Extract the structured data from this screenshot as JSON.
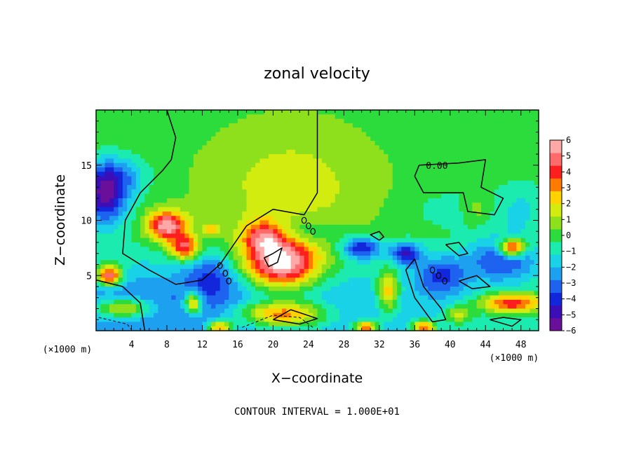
{
  "chart_data": {
    "type": "heatmap",
    "title": "zonal velocity",
    "xlabel": "X−coordinate",
    "ylabel": "Z−coordinate",
    "x_unit_left": "(×1000 m)",
    "x_unit_right": "(×1000 m)",
    "xlim": [
      0,
      50
    ],
    "ylim": [
      0,
      20
    ],
    "x_ticks": [
      4,
      8,
      12,
      16,
      20,
      24,
      28,
      32,
      36,
      40,
      44,
      48
    ],
    "y_ticks": [
      5,
      10,
      15
    ],
    "colorbar": {
      "min": -6,
      "max": 6,
      "tick_values": [
        6,
        5,
        4,
        3,
        2,
        1,
        0,
        -1,
        -2,
        -3,
        -4,
        -5,
        -6
      ],
      "tick_labels": [
        "6",
        "5",
        "4",
        "3",
        "2",
        "1",
        "0",
        "−1",
        "−2",
        "−3",
        "−4",
        "−5",
        "−6"
      ],
      "colors": [
        "#6a0f9a",
        "#3a0fb8",
        "#1226dc",
        "#1e63f0",
        "#1ea0f0",
        "#19d2e8",
        "#1cebb0",
        "#2bdc3c",
        "#8fe01c",
        "#d2ec10",
        "#ffd200",
        "#ff7a00",
        "#ff1e1e",
        "#ff6a6a",
        "#ffa8a8"
      ]
    },
    "contour_label": "0.00",
    "contour_interval_text": "CONTOUR INTERVAL = 1.000E+01",
    "field_blobs": [
      {
        "x": 10,
        "y": 2,
        "sx": 32,
        "sy": 4.5,
        "v": -3.0
      },
      {
        "x": 39,
        "y": 5,
        "sx": 3,
        "sy": 1.8,
        "v": -3.0
      },
      {
        "x": 1,
        "y": 12,
        "sx": 2.6,
        "sy": 2.5,
        "v": -4.8
      },
      {
        "x": 2,
        "y": 14,
        "sx": 3.5,
        "sy": 1.8,
        "v": -2.5
      },
      {
        "x": 13,
        "y": 5,
        "sx": 2.8,
        "sy": 2.0,
        "v": -2.2
      },
      {
        "x": 23,
        "y": 9,
        "sx": 4,
        "sy": 1.2,
        "v": -1.5
      },
      {
        "x": 30,
        "y": 7.5,
        "sx": 2.2,
        "sy": 1.0,
        "v": -4.2
      },
      {
        "x": 35,
        "y": 7.0,
        "sx": 1.8,
        "sy": 1.0,
        "v": -4.0
      },
      {
        "x": 46,
        "y": 6.5,
        "sx": 4,
        "sy": 2.0,
        "v": -3.5
      },
      {
        "x": 48,
        "y": 11,
        "sx": 3,
        "sy": 2.5,
        "v": -1.3
      },
      {
        "x": 40,
        "y": 11,
        "sx": 5,
        "sy": 1.8,
        "v": -0.8
      },
      {
        "x": 22,
        "y": 13,
        "sx": 10,
        "sy": 6,
        "v": 1.6
      },
      {
        "x": 43,
        "y": 11,
        "sx": 1.6,
        "sy": 1.2,
        "v": 1.2
      },
      {
        "x": 8,
        "y": 9.5,
        "sx": 2.2,
        "sy": 1.3,
        "v": 6.0
      },
      {
        "x": 10,
        "y": 7.5,
        "sx": 1.6,
        "sy": 1.1,
        "v": 5.0
      },
      {
        "x": 21,
        "y": 6,
        "sx": 4.2,
        "sy": 2.3,
        "v": 7.2
      },
      {
        "x": 19,
        "y": 8.5,
        "sx": 2.5,
        "sy": 1.5,
        "v": 4.0
      },
      {
        "x": 13,
        "y": 9.2,
        "sx": 0.8,
        "sy": 0.5,
        "v": 3.0
      },
      {
        "x": 21,
        "y": 1.5,
        "sx": 5,
        "sy": 1.2,
        "v": 5.5
      },
      {
        "x": 33,
        "y": 3.5,
        "sx": 1.2,
        "sy": 1.8,
        "v": 3.8
      },
      {
        "x": 3,
        "y": 2.0,
        "sx": 3.5,
        "sy": 0.9,
        "v": 4.0
      },
      {
        "x": 11,
        "y": 2.5,
        "sx": 1.0,
        "sy": 1.0,
        "v": 5.0
      },
      {
        "x": 47,
        "y": 2.5,
        "sx": 3.5,
        "sy": 0.9,
        "v": 5.0
      },
      {
        "x": 47,
        "y": 7.5,
        "sx": 1.5,
        "sy": 0.8,
        "v": 6.5
      },
      {
        "x": 1.5,
        "y": 5,
        "sx": 1.4,
        "sy": 0.9,
        "v": 6.5
      },
      {
        "x": 14,
        "y": 0.3,
        "sx": 1.4,
        "sy": 0.6,
        "v": 5.0
      },
      {
        "x": 30.5,
        "y": 0.3,
        "sx": 1.2,
        "sy": 0.6,
        "v": 5.0
      },
      {
        "x": 37,
        "y": 0.3,
        "sx": 1.2,
        "sy": 0.6,
        "v": 5.0
      },
      {
        "x": 41,
        "y": 1.5,
        "sx": 1.5,
        "sy": 0.8,
        "v": 2.5
      }
    ],
    "zero_contours": [
      [
        [
          5.5,
          0.0
        ],
        [
          5.0,
          2.5
        ],
        [
          3.0,
          4.0
        ],
        [
          0.0,
          4.6
        ]
      ],
      [
        [
          3.3,
          10.0
        ],
        [
          5.0,
          12.5
        ],
        [
          7.5,
          14.5
        ],
        [
          8.5,
          15.5
        ],
        [
          9.0,
          17.5
        ],
        [
          8.0,
          20.0
        ]
      ],
      [
        [
          3.3,
          10.0
        ],
        [
          3.0,
          7.0
        ],
        [
          6.0,
          5.5
        ],
        [
          9.0,
          4.2
        ],
        [
          12.0,
          4.6
        ],
        [
          14.0,
          6.0
        ],
        [
          17.0,
          9.5
        ],
        [
          20.0,
          11.0
        ],
        [
          23.5,
          10.5
        ],
        [
          25.0,
          12.5
        ],
        [
          25.0,
          20.0
        ]
      ],
      [
        [
          20.0,
          7.0
        ],
        [
          21.0,
          7.5
        ],
        [
          20.5,
          6.2
        ],
        [
          19.5,
          5.8
        ],
        [
          19.0,
          6.6
        ],
        [
          20.0,
          7.0
        ]
      ],
      [
        [
          36.5,
          15.0
        ],
        [
          41.0,
          15.2
        ],
        [
          44.0,
          15.5
        ],
        [
          43.5,
          13.0
        ],
        [
          46.0,
          12.0
        ],
        [
          45.0,
          10.5
        ],
        [
          42.0,
          10.8
        ],
        [
          41.5,
          12.5
        ],
        [
          37.0,
          12.5
        ],
        [
          36.0,
          14.0
        ],
        [
          36.5,
          15.0
        ]
      ],
      [
        [
          32.0,
          8.2
        ],
        [
          31.0,
          8.7
        ],
        [
          32.0,
          9.0
        ],
        [
          32.5,
          8.5
        ],
        [
          32.0,
          8.2
        ]
      ],
      [
        [
          39.5,
          7.8
        ],
        [
          41.0,
          8.0
        ],
        [
          42.0,
          7.0
        ],
        [
          41.0,
          6.8
        ],
        [
          39.5,
          7.8
        ]
      ],
      [
        [
          41.0,
          4.5
        ],
        [
          43.0,
          5.0
        ],
        [
          44.5,
          4.0
        ],
        [
          42.5,
          3.8
        ],
        [
          41.0,
          4.5
        ]
      ],
      [
        [
          36.0,
          6.5
        ],
        [
          37.0,
          4.0
        ],
        [
          39.0,
          2.0
        ],
        [
          39.5,
          1.0
        ],
        [
          38.0,
          0.8
        ],
        [
          36.0,
          3.0
        ],
        [
          35.0,
          5.5
        ],
        [
          36.0,
          6.5
        ]
      ],
      [
        [
          20.0,
          1.0
        ],
        [
          23.0,
          0.6
        ],
        [
          25.0,
          1.1
        ],
        [
          22.0,
          1.9
        ],
        [
          20.0,
          1.0
        ]
      ],
      [
        [
          44.5,
          1.0
        ],
        [
          46.0,
          1.2
        ],
        [
          48.0,
          1.0
        ],
        [
          47.0,
          0.4
        ],
        [
          44.5,
          1.0
        ]
      ]
    ],
    "dashed_contours": [
      [
        [
          16.5,
          0.3
        ],
        [
          20.0,
          1.4
        ],
        [
          23.0,
          1.2
        ],
        [
          24.5,
          0.3
        ]
      ],
      [
        [
          0.3,
          1.2
        ],
        [
          3.5,
          0.6
        ],
        [
          4.0,
          0.1
        ]
      ]
    ],
    "contour_label_dots": [
      {
        "x": 14.0,
        "y": 5.9
      },
      {
        "x": 14.6,
        "y": 5.2
      },
      {
        "x": 15.0,
        "y": 4.5
      },
      {
        "x": 23.5,
        "y": 10.0
      },
      {
        "x": 24.0,
        "y": 9.5
      },
      {
        "x": 24.5,
        "y": 9.0
      },
      {
        "x": 38.0,
        "y": 5.5
      },
      {
        "x": 38.7,
        "y": 5.0
      },
      {
        "x": 39.4,
        "y": 4.5
      }
    ],
    "contour_label_position": {
      "x": 38.5,
      "y": 15.0
    }
  }
}
